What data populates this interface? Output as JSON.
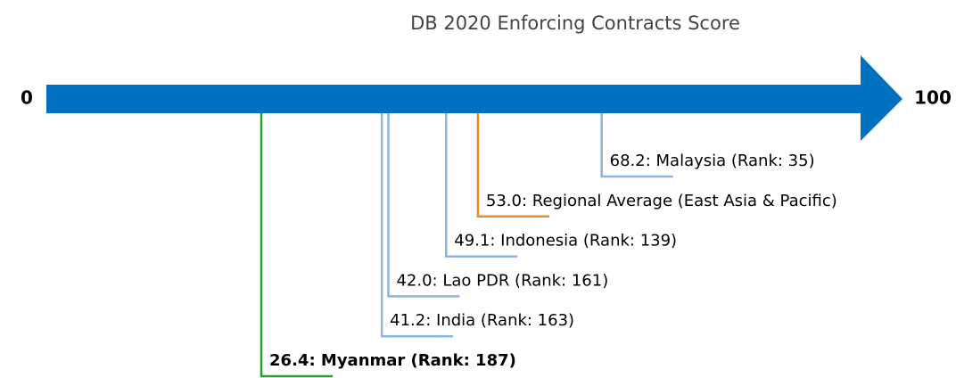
{
  "chart_data": {
    "type": "number-line",
    "title": "DB 2020 Enforcing Contracts Score",
    "xlim": [
      0,
      100
    ],
    "xticks": [
      0,
      100
    ],
    "axis_color": "#0070c0",
    "values": [
      26.4,
      41.2,
      42.0,
      49.1,
      53.0,
      68.2
    ],
    "value_labels": [
      "26.4: Myanmar (Rank: 187)",
      "41.2: India (Rank: 163)",
      "42.0: Lao PDR (Rank: 161)",
      "49.1: Indonesia (Rank: 139)",
      "53.0: Regional Average (East Asia & Pacific)",
      "68.2: Malaysia (Rank: 35)"
    ],
    "colors": [
      "#2ca02c",
      "#8db4e2",
      "#8db4e2",
      "#8db4e2",
      "#f0892a",
      "#8db4e2"
    ],
    "bold": [
      true,
      false,
      false,
      false,
      false,
      false
    ]
  }
}
